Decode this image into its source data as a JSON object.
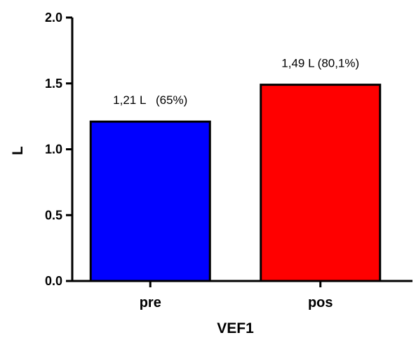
{
  "chart_data": {
    "type": "bar",
    "title": "",
    "xlabel": "VEF1",
    "ylabel": "L",
    "ylim": [
      0,
      2.0
    ],
    "yticks": [
      0.0,
      0.5,
      1.0,
      1.5,
      2.0
    ],
    "ytick_labels": [
      "0.0",
      "0.5",
      "1.0",
      "1.5",
      "2.0"
    ],
    "categories": [
      "pre",
      "pos"
    ],
    "values": [
      1.21,
      1.49
    ],
    "colors": [
      "#0000ff",
      "#ff0000"
    ],
    "data_labels": [
      "1,21 L   (65%)",
      "1,49 L (80,1%)"
    ],
    "grid": false,
    "legend": "none"
  }
}
